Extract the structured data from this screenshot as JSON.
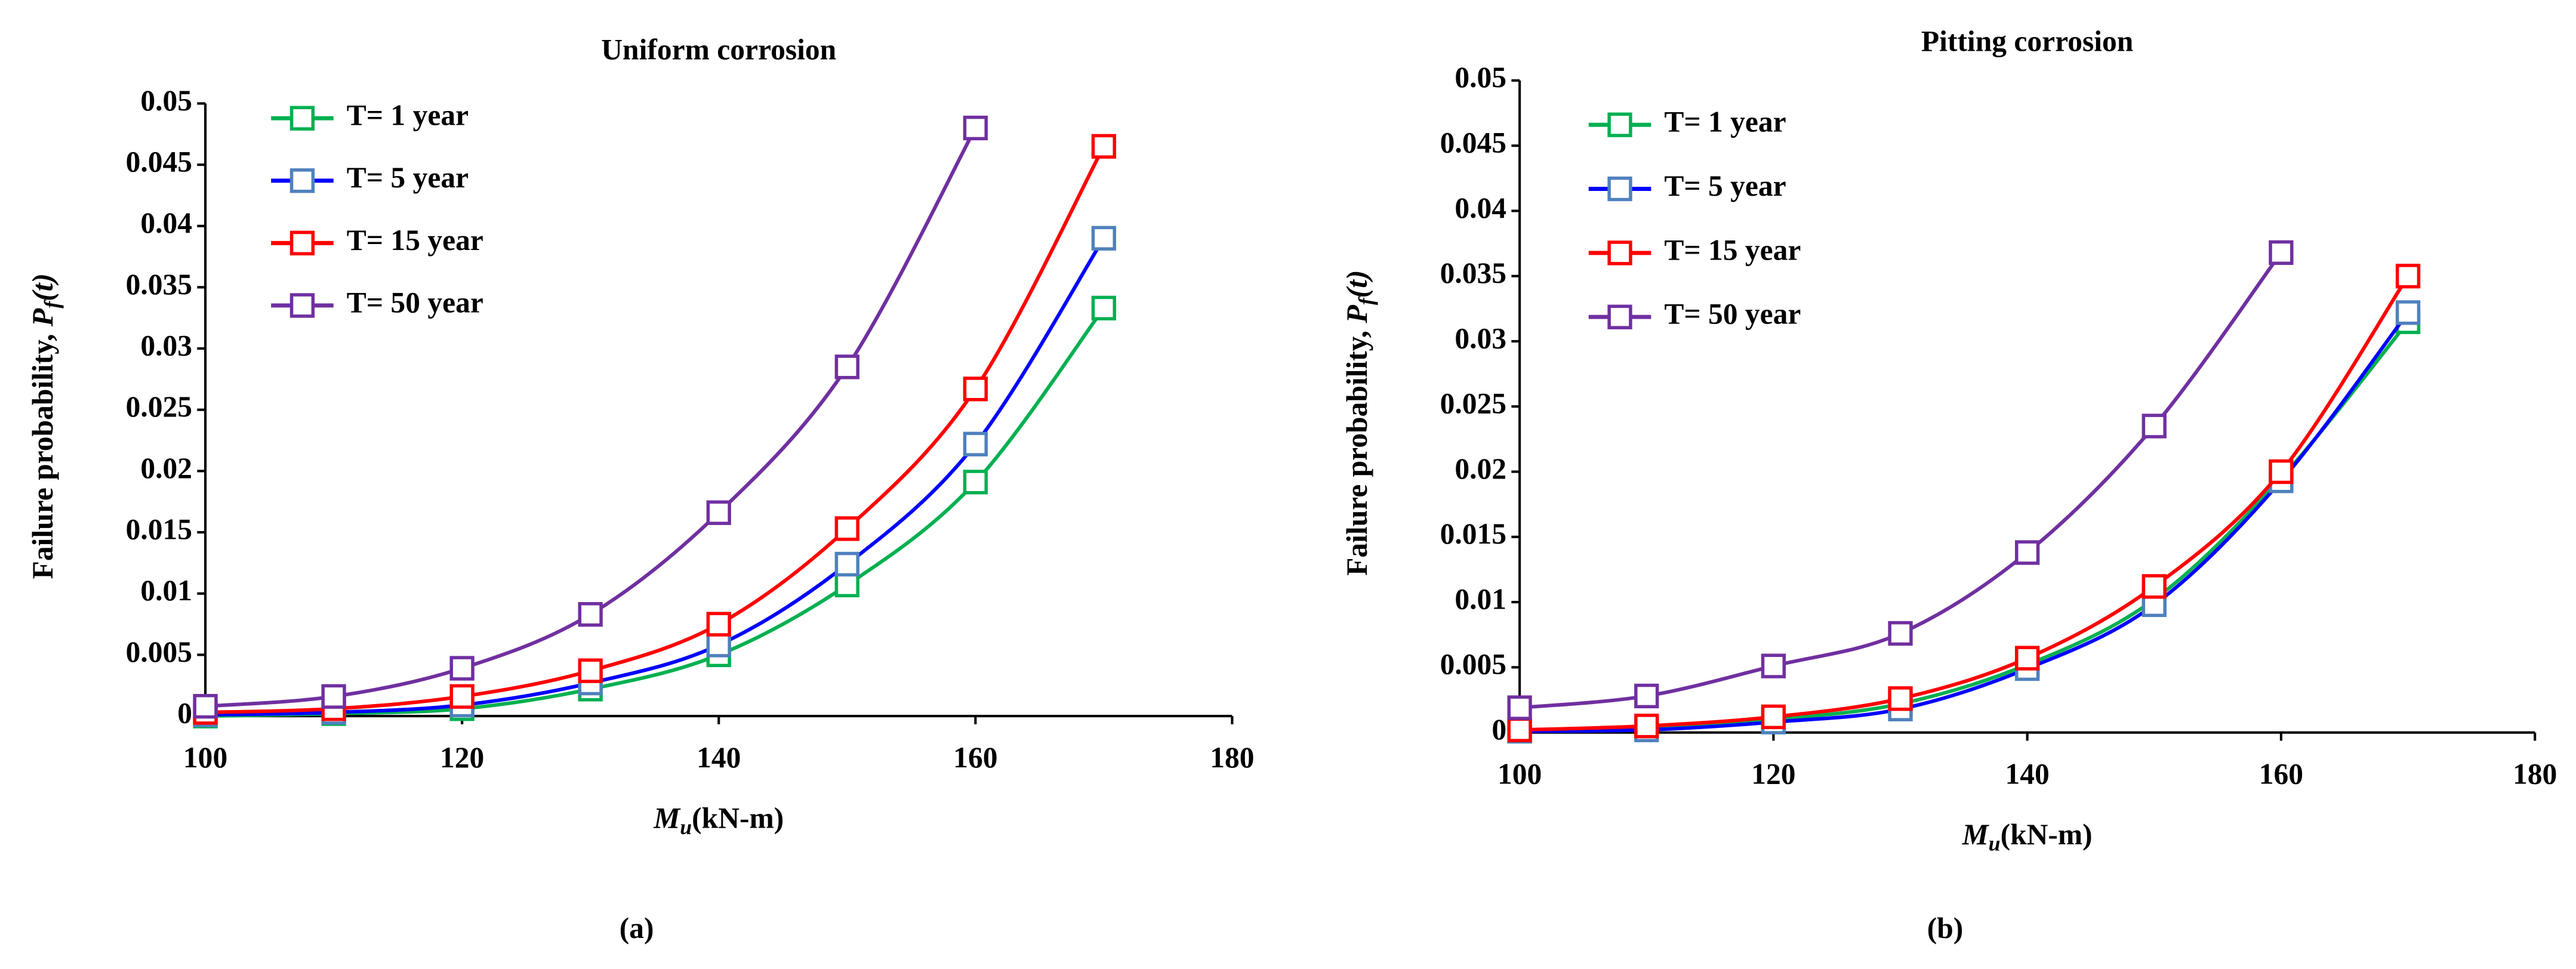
{
  "chart_data": [
    {
      "type": "line",
      "title": "Uniform corrosion",
      "panel_label": "(a)",
      "x_label_parts": [
        "M",
        "u",
        "(kN-m)"
      ],
      "y_label_parts": [
        "Failure probability, ",
        "P",
        "f",
        "(t)"
      ],
      "x": [
        100,
        110,
        120,
        130,
        140,
        150,
        160,
        170
      ],
      "series": [
        {
          "name": "T= 1 year",
          "color": "#00b050",
          "marker_color": "#00b050",
          "values": [
            0,
            0.0002,
            0.0006,
            0.0022,
            0.005,
            0.0107,
            0.0191,
            0.0333
          ]
        },
        {
          "name": "T= 5 year",
          "color": "#0000ff",
          "marker_color": "#4f81bd",
          "values": [
            0.0001,
            0.0003,
            0.0009,
            0.0027,
            0.0058,
            0.0124,
            0.0222,
            0.039
          ]
        },
        {
          "name": "T= 15 year",
          "color": "#ff0000",
          "marker_color": "#ff0000",
          "values": [
            0.0003,
            0.0006,
            0.0016,
            0.0037,
            0.0075,
            0.0153,
            0.0267,
            0.0465
          ]
        },
        {
          "name": "T= 50 year",
          "color": "#7030a0",
          "marker_color": "#7030a0",
          "values": [
            0.0008,
            0.0016,
            0.0039,
            0.0083,
            0.0166,
            0.0285,
            0.048,
            null
          ]
        }
      ],
      "xlim": [
        100,
        180
      ],
      "xticks": [
        100,
        120,
        140,
        160,
        180
      ],
      "ylim": [
        0,
        0.05
      ],
      "yticks": [
        0,
        0.005,
        0.01,
        0.015,
        0.02,
        0.025,
        0.03,
        0.035,
        0.04,
        0.045,
        0.05
      ],
      "legend": "upper left"
    },
    {
      "type": "line",
      "title": "Pitting corrosion",
      "panel_label": "(b)",
      "x_label_parts": [
        "M",
        "u",
        "(kN-m)"
      ],
      "y_label_parts": [
        "Failure probability, ",
        "P",
        "f",
        "(t)"
      ],
      "x": [
        100,
        110,
        120,
        130,
        140,
        150,
        160,
        170
      ],
      "series": [
        {
          "name": "T= 1 year",
          "color": "#00b050",
          "marker_color": "#00b050",
          "values": [
            0.0001,
            0.0003,
            0.001,
            0.0022,
            0.0052,
            0.0102,
            0.0195,
            0.0315
          ]
        },
        {
          "name": "T= 5 year",
          "color": "#0000ff",
          "marker_color": "#4f81bd",
          "values": [
            0.0001,
            0.0002,
            0.0008,
            0.0018,
            0.0049,
            0.0098,
            0.0193,
            0.0322
          ]
        },
        {
          "name": "T= 15 year",
          "color": "#ff0000",
          "marker_color": "#ff0000",
          "values": [
            0.0002,
            0.0005,
            0.0012,
            0.0026,
            0.0057,
            0.0112,
            0.02,
            0.035
          ]
        },
        {
          "name": "T= 50 year",
          "color": "#7030a0",
          "marker_color": "#7030a0",
          "values": [
            0.0019,
            0.0028,
            0.0051,
            0.0076,
            0.0138,
            0.0235,
            0.0368,
            null
          ]
        }
      ],
      "xlim": [
        100,
        180
      ],
      "xticks": [
        100,
        120,
        140,
        160,
        180
      ],
      "ylim": [
        0,
        0.05
      ],
      "yticks": [
        0,
        0.005,
        0.01,
        0.015,
        0.02,
        0.025,
        0.03,
        0.035,
        0.04,
        0.045,
        0.05
      ],
      "legend": "upper left"
    }
  ]
}
